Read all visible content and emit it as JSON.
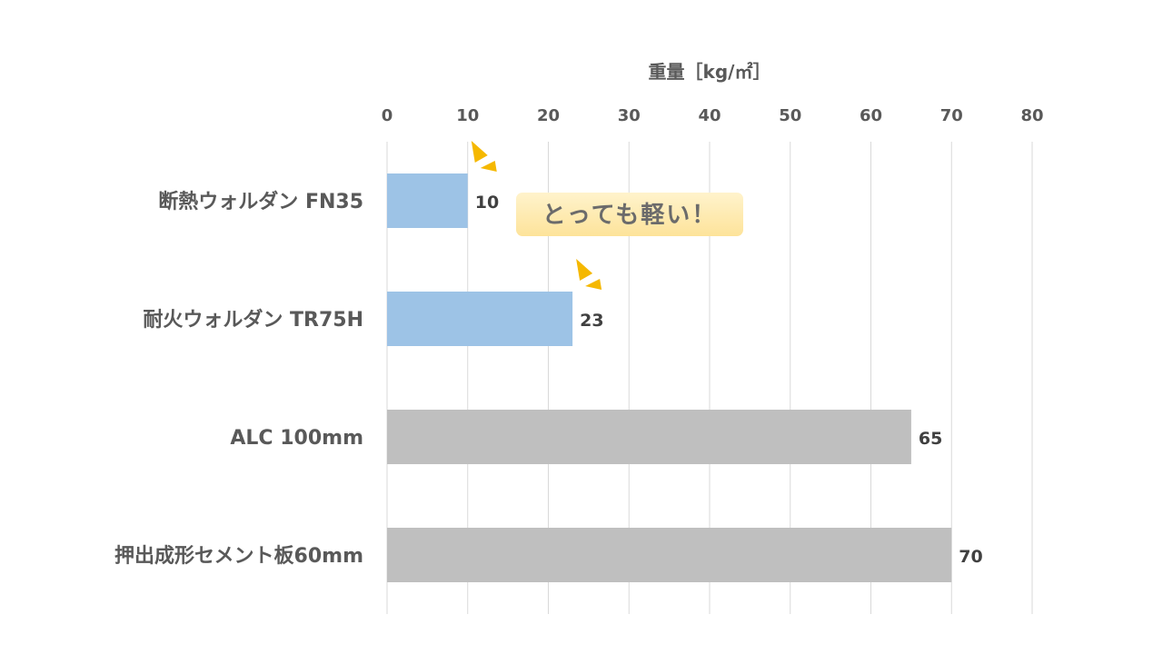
{
  "chart_data": {
    "type": "bar",
    "orientation": "horizontal",
    "categories": [
      "断熱ウォルダン FN35",
      "耐火ウォルダン TR75H",
      "ALC 100mm",
      "押出成形セメント板60mm"
    ],
    "values": [
      10,
      23,
      65,
      70
    ],
    "data_labels": [
      "10",
      "23",
      "65",
      "70"
    ],
    "bar_colors": [
      "#9dc3e6",
      "#9dc3e6",
      "#bfbfbf",
      "#bfbfbf"
    ],
    "xlabel": "重量［kg/㎡］",
    "ylabel": "",
    "xlim": [
      0,
      80
    ],
    "xticks": [
      0,
      10,
      20,
      30,
      40,
      50,
      60,
      70,
      80
    ],
    "x_axis_position": "top",
    "grid": true,
    "grid_color": "#d9d9d9",
    "annotation": {
      "text": "とっても軽い！",
      "background": "#fde9a9",
      "accent_color": "#f5b800"
    }
  }
}
